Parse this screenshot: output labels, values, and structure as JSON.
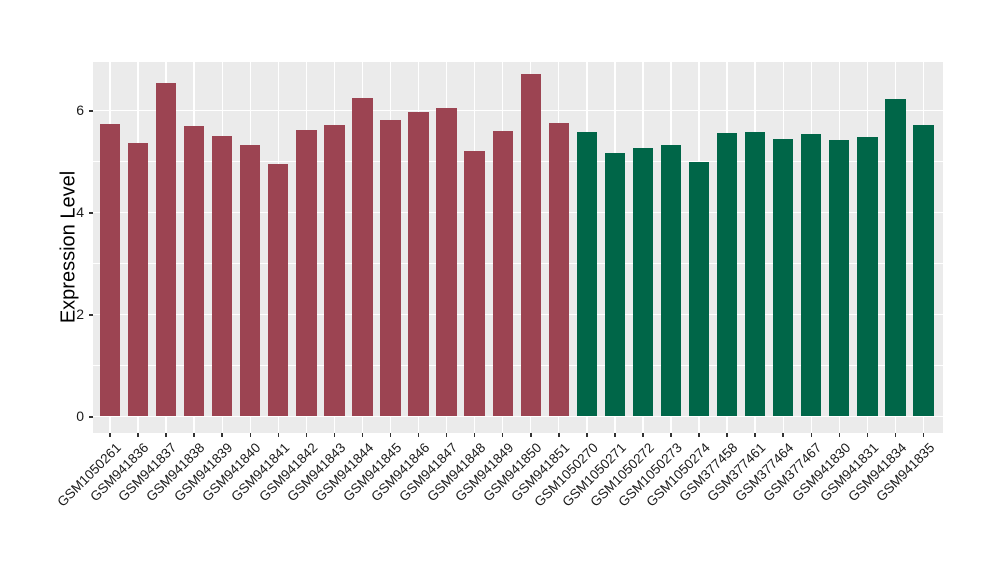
{
  "chart_data": {
    "type": "bar",
    "title": "",
    "xlabel": "",
    "ylabel": "Expression Level",
    "y_ticks": [
      0,
      2,
      4,
      6
    ],
    "y_minor_ticks": [
      1,
      3,
      5
    ],
    "ylim": [
      -0.33,
      6.94
    ],
    "grid": "white major+minor horizontal lines and vertical category lines on grey panel",
    "legend_position": "none",
    "colors": {
      "panel_bg": "#EBEBEB",
      "gridline": "#FFFFFF",
      "axis_text": "#1A1A1A",
      "group_a": "#9C4452",
      "group_b": "#006648"
    },
    "groups": [
      {
        "name": "group-a",
        "color": "#9C4452"
      },
      {
        "name": "group-b",
        "color": "#006648"
      }
    ],
    "bars": [
      {
        "label": "GSM1050261",
        "value": 5.72,
        "group": 0
      },
      {
        "label": "GSM941836",
        "value": 5.36,
        "group": 0
      },
      {
        "label": "GSM941837",
        "value": 6.52,
        "group": 0
      },
      {
        "label": "GSM941838",
        "value": 5.68,
        "group": 0
      },
      {
        "label": "GSM941839",
        "value": 5.49,
        "group": 0
      },
      {
        "label": "GSM941840",
        "value": 5.32,
        "group": 0
      },
      {
        "label": "GSM941841",
        "value": 4.95,
        "group": 0
      },
      {
        "label": "GSM941842",
        "value": 5.6,
        "group": 0
      },
      {
        "label": "GSM941843",
        "value": 5.7,
        "group": 0
      },
      {
        "label": "GSM941844",
        "value": 6.23,
        "group": 0
      },
      {
        "label": "GSM941845",
        "value": 5.81,
        "group": 0
      },
      {
        "label": "GSM941846",
        "value": 5.97,
        "group": 0
      },
      {
        "label": "GSM941847",
        "value": 6.04,
        "group": 0
      },
      {
        "label": "GSM941848",
        "value": 5.2,
        "group": 0
      },
      {
        "label": "GSM941849",
        "value": 5.58,
        "group": 0
      },
      {
        "label": "GSM941850",
        "value": 6.7,
        "group": 0
      },
      {
        "label": "GSM941851",
        "value": 5.75,
        "group": 0
      },
      {
        "label": "GSM1050270",
        "value": 5.57,
        "group": 1
      },
      {
        "label": "GSM1050271",
        "value": 5.16,
        "group": 1
      },
      {
        "label": "GSM1050272",
        "value": 5.25,
        "group": 1
      },
      {
        "label": "GSM1050273",
        "value": 5.32,
        "group": 1
      },
      {
        "label": "GSM1050274",
        "value": 4.99,
        "group": 1
      },
      {
        "label": "GSM377458",
        "value": 5.55,
        "group": 1
      },
      {
        "label": "GSM377461",
        "value": 5.56,
        "group": 1
      },
      {
        "label": "GSM377464",
        "value": 5.43,
        "group": 1
      },
      {
        "label": "GSM377467",
        "value": 5.52,
        "group": 1
      },
      {
        "label": "GSM941830",
        "value": 5.41,
        "group": 1
      },
      {
        "label": "GSM941831",
        "value": 5.47,
        "group": 1
      },
      {
        "label": "GSM941834",
        "value": 6.21,
        "group": 1
      },
      {
        "label": "GSM941835",
        "value": 5.7,
        "group": 1
      }
    ]
  }
}
